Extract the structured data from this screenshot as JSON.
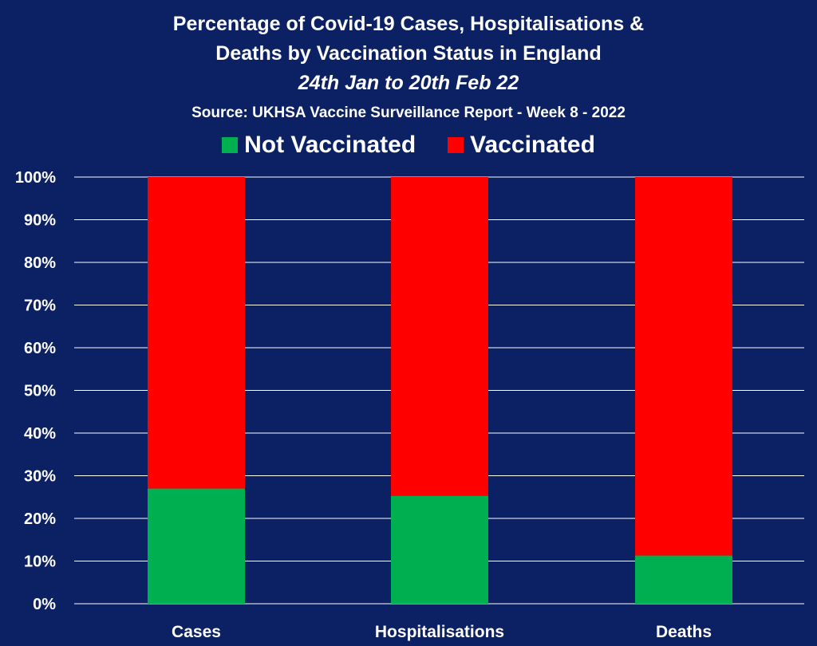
{
  "chart_data": {
    "type": "bar",
    "stacked": true,
    "title_lines": [
      "Percentage of Covid-19 Cases, Hospitalisations &",
      "Deaths by Vaccination Status in England"
    ],
    "subtitle": "24th Jan to 20th Feb 22",
    "source": "Source: UKHSA Vaccine Surveillance Report - Week 8 - 2022",
    "categories": [
      "Cases",
      "Hospitalisations",
      "Deaths"
    ],
    "series": [
      {
        "name": "Not Vaccinated",
        "color": "#00b050",
        "values": [
          27,
          25.3,
          11.3
        ]
      },
      {
        "name": "Vaccinated",
        "color": "#ff0000",
        "values": [
          73,
          74.7,
          88.7
        ]
      }
    ],
    "ylim": [
      0,
      100
    ],
    "y_ticks": [
      0,
      10,
      20,
      30,
      40,
      50,
      60,
      70,
      80,
      90,
      100
    ],
    "y_tick_labels": [
      "0%",
      "10%",
      "20%",
      "30%",
      "40%",
      "50%",
      "60%",
      "70%",
      "80%",
      "90%",
      "100%"
    ],
    "grid": true,
    "legend_position": "top",
    "background_color": "#0b2163",
    "gridline_color": "#ffffff"
  }
}
